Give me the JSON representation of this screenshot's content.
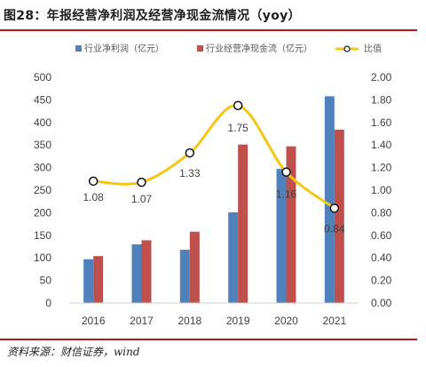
{
  "header": {
    "title": "图28：年报经营净利润及经营净现金流情况（yoy）"
  },
  "source": {
    "text": "资料来源：财信证券，wind"
  },
  "colors": {
    "series1": "#4f81bd",
    "series2": "#c0504d",
    "ratio": "#f5c518",
    "rule": "#b01c1c"
  },
  "chart_data": {
    "type": "bar",
    "categories": [
      "2016",
      "2017",
      "2018",
      "2019",
      "2020",
      "2021"
    ],
    "series": [
      {
        "name": "行业净利润（亿元）",
        "axis": "left",
        "values": [
          97,
          130,
          118,
          201,
          297,
          458
        ]
      },
      {
        "name": "行业经营净现金流（亿元）",
        "axis": "left",
        "values": [
          104,
          139,
          158,
          351,
          347,
          384
        ]
      },
      {
        "name": "比值",
        "type": "line",
        "axis": "right",
        "values": [
          1.08,
          1.07,
          1.33,
          1.75,
          1.16,
          0.84
        ],
        "labels": [
          "1.08",
          "1.07",
          "1.33",
          "1.75",
          "1.16",
          "0.84"
        ]
      }
    ],
    "y_left": {
      "min": 0,
      "max": 500,
      "ticks": [
        "0",
        "50",
        "100",
        "150",
        "200",
        "250",
        "300",
        "350",
        "400",
        "450",
        "500"
      ]
    },
    "y_right": {
      "min": 0,
      "max": 2.0,
      "ticks": [
        "0.00",
        "0.20",
        "0.40",
        "0.60",
        "0.80",
        "1.00",
        "1.20",
        "1.40",
        "1.60",
        "1.80",
        "2.00"
      ]
    },
    "legend_position": "top"
  }
}
